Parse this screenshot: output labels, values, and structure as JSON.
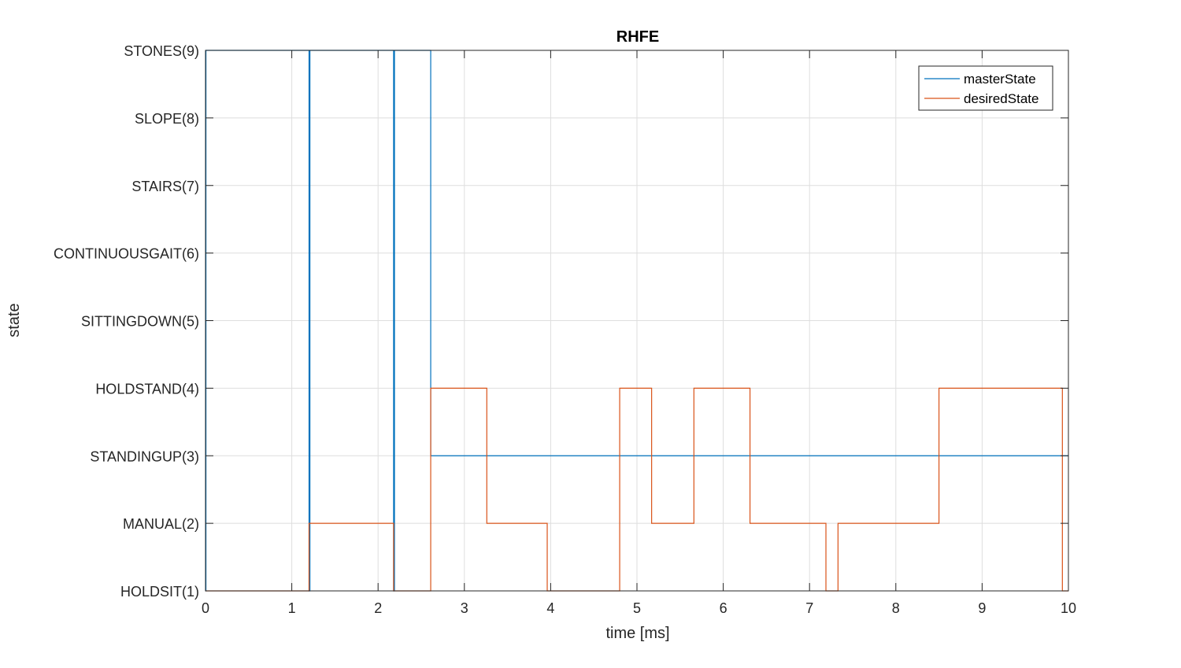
{
  "chart_data": {
    "type": "line",
    "title": "RHFE",
    "xlabel": "time [ms]",
    "ylabel": "state",
    "xlim": [
      0,
      10
    ],
    "ylim": [
      1,
      9
    ],
    "xticks": [
      0,
      1,
      2,
      3,
      4,
      5,
      6,
      7,
      8,
      9,
      10
    ],
    "xtick_labels": [
      "0",
      "1",
      "2",
      "3",
      "4",
      "5",
      "6",
      "7",
      "8",
      "9",
      "10"
    ],
    "yticks": [
      1,
      2,
      3,
      4,
      5,
      6,
      7,
      8,
      9
    ],
    "ytick_labels": [
      "HOLDSIT(1)",
      "MANUAL(2)",
      "STANDINGUP(3)",
      "HOLDSTAND(4)",
      "SITTINGDOWN(5)",
      "CONTINUOUSGAIT(6)",
      "STAIRS(7)",
      "SLOPE(8)",
      "STONES(9)"
    ],
    "grid": true,
    "legend_position": "top-right",
    "series": [
      {
        "name": "masterState",
        "color": "#0072BD",
        "step": true,
        "x": [
          0,
          0.005,
          1.2,
          1.21,
          2.18,
          2.19,
          2.61,
          10
        ],
        "y": [
          1,
          9,
          1,
          9,
          1,
          9,
          3,
          3
        ]
      },
      {
        "name": "desiredState",
        "color": "#D95319",
        "step": true,
        "x": [
          0,
          1.2,
          2.18,
          2.61,
          3.26,
          3.96,
          4.8,
          5.17,
          5.66,
          6.31,
          7.19,
          7.33,
          8.5,
          9.93,
          10
        ],
        "y": [
          1,
          2,
          1,
          4,
          2,
          1,
          4,
          2,
          4,
          2,
          1,
          2,
          4,
          1,
          1
        ]
      }
    ]
  }
}
